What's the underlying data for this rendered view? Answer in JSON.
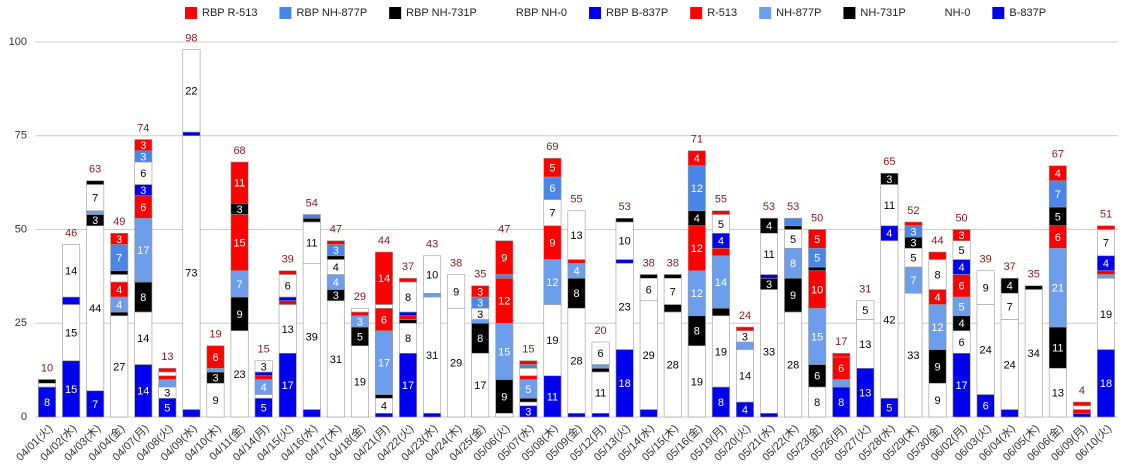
{
  "chart_data": {
    "type": "stacked_bar",
    "categories": [
      "04/01(火)",
      "04/02(水)",
      "04/03(木)",
      "04/04(金)",
      "04/07(月)",
      "04/08(火)",
      "04/09(水)",
      "04/10(木)",
      "04/11(金)",
      "04/14(月)",
      "04/15(火)",
      "04/16(水)",
      "04/17(木)",
      "04/18(金)",
      "04/21(月)",
      "04/22(火)",
      "04/23(水)",
      "04/24(木)",
      "04/25(金)",
      "05/06(火)",
      "05/07(水)",
      "05/08(木)",
      "05/09(金)",
      "05/12(月)",
      "05/13(火)",
      "05/14(水)",
      "05/15(木)",
      "05/16(金)",
      "05/19(月)",
      "05/20(火)",
      "05/21(水)",
      "05/22(木)",
      "05/23(金)",
      "05/26(月)",
      "05/27(火)",
      "05/28(水)",
      "05/29(木)",
      "05/30(金)",
      "06/02(月)",
      "06/03(火)",
      "06/04(水)",
      "06/05(木)",
      "06/06(金)",
      "06/09(月)",
      "06/10(火)"
    ],
    "series": [
      {
        "name": "RBP R-513",
        "color": "#ff0000",
        "values": [
          0,
          0,
          0,
          3,
          3,
          1,
          0,
          0,
          11,
          0,
          1,
          0,
          1,
          0,
          14,
          1,
          0,
          0,
          3,
          9,
          1,
          5,
          0,
          0,
          0,
          0,
          0,
          4,
          1,
          1,
          0,
          0,
          5,
          1,
          0,
          0,
          1,
          2,
          3,
          0,
          0,
          0,
          4,
          1,
          1
        ]
      },
      {
        "name": "RBP NH-877P",
        "color": "#4a86e8",
        "values": [
          0,
          0,
          0,
          7,
          3,
          0,
          0,
          0,
          0,
          0,
          0,
          1,
          3,
          0,
          0,
          0,
          0,
          0,
          3,
          1,
          1,
          6,
          0,
          0,
          0,
          0,
          0,
          12,
          0,
          0,
          0,
          2,
          5,
          0,
          0,
          0,
          3,
          0,
          0,
          0,
          0,
          0,
          7,
          0,
          0
        ]
      },
      {
        "name": "RBP NH-731P",
        "color": "#000000",
        "values": [
          0,
          0,
          1,
          1,
          0,
          0,
          0,
          0,
          3,
          0,
          0,
          1,
          1,
          0,
          0,
          0,
          0,
          0,
          0,
          0,
          0,
          0,
          0,
          0,
          1,
          1,
          1,
          4,
          0,
          0,
          4,
          1,
          1,
          0,
          0,
          3,
          3,
          0,
          0,
          0,
          4,
          1,
          5,
          0,
          0
        ]
      },
      {
        "name": "RBP NH-0",
        "color": "#ffffff",
        "values": [
          0,
          14,
          7,
          2,
          6,
          1,
          22,
          0,
          0,
          3,
          6,
          11,
          4,
          1,
          1,
          8,
          10,
          9,
          3,
          0,
          2,
          7,
          13,
          6,
          10,
          6,
          7,
          0,
          5,
          3,
          11,
          5,
          0,
          0,
          5,
          11,
          5,
          8,
          5,
          9,
          7,
          0,
          0,
          1,
          7
        ]
      },
      {
        "name": "RBP B-837P",
        "color": "#0000ee",
        "values": [
          0,
          2,
          0,
          0,
          3,
          0,
          1,
          0,
          0,
          1,
          1,
          0,
          0,
          0,
          0,
          1,
          0,
          0,
          0,
          0,
          0,
          0,
          0,
          0,
          1,
          0,
          0,
          0,
          4,
          0,
          1,
          0,
          0,
          0,
          0,
          4,
          0,
          0,
          4,
          0,
          0,
          0,
          0,
          0,
          4
        ]
      },
      {
        "name": "R-513",
        "color": "#ff0000",
        "values": [
          0,
          0,
          0,
          4,
          6,
          1,
          0,
          6,
          15,
          1,
          1,
          0,
          0,
          1,
          6,
          1,
          0,
          0,
          0,
          12,
          1,
          9,
          1,
          0,
          0,
          0,
          0,
          12,
          2,
          0,
          0,
          0,
          10,
          6,
          0,
          0,
          0,
          4,
          6,
          0,
          0,
          0,
          6,
          1,
          1
        ]
      },
      {
        "name": "NH-877P",
        "color": "#6d9eeb",
        "values": [
          0,
          0,
          1,
          4,
          17,
          2,
          0,
          1,
          7,
          4,
          0,
          0,
          4,
          3,
          17,
          0,
          1,
          0,
          1,
          15,
          5,
          12,
          4,
          1,
          0,
          0,
          0,
          12,
          14,
          2,
          0,
          8,
          15,
          2,
          0,
          0,
          7,
          12,
          5,
          0,
          0,
          0,
          21,
          0,
          1
        ]
      },
      {
        "name": "NH-731P",
        "color": "#000000",
        "values": [
          1,
          0,
          3,
          1,
          8,
          0,
          0,
          3,
          9,
          0,
          0,
          0,
          3,
          5,
          1,
          1,
          0,
          0,
          8,
          9,
          1,
          0,
          8,
          1,
          0,
          0,
          2,
          8,
          2,
          0,
          3,
          9,
          6,
          0,
          0,
          0,
          0,
          9,
          4,
          0,
          0,
          0,
          11,
          0,
          0
        ]
      },
      {
        "name": "NH-0",
        "color": "#ffffff",
        "values": [
          1,
          15,
          44,
          27,
          14,
          3,
          73,
          9,
          23,
          1,
          13,
          39,
          31,
          19,
          4,
          8,
          31,
          29,
          17,
          1,
          1,
          19,
          28,
          11,
          23,
          29,
          28,
          19,
          19,
          14,
          33,
          28,
          8,
          0,
          13,
          42,
          33,
          9,
          6,
          24,
          24,
          34,
          13,
          0,
          19
        ]
      },
      {
        "name": "B-837P",
        "color": "#0000ee",
        "values": [
          8,
          15,
          7,
          0,
          14,
          5,
          2,
          0,
          0,
          5,
          17,
          2,
          0,
          0,
          1,
          17,
          1,
          0,
          0,
          0,
          3,
          11,
          1,
          1,
          18,
          2,
          0,
          0,
          8,
          4,
          1,
          0,
          0,
          8,
          13,
          5,
          0,
          0,
          17,
          6,
          2,
          0,
          0,
          1,
          18
        ]
      }
    ],
    "totals": [
      10,
      46,
      63,
      49,
      74,
      13,
      98,
      19,
      68,
      15,
      39,
      54,
      47,
      29,
      44,
      37,
      43,
      38,
      35,
      47,
      15,
      69,
      55,
      20,
      53,
      38,
      38,
      71,
      55,
      24,
      53,
      53,
      50,
      17,
      31,
      65,
      52,
      44,
      50,
      39,
      37,
      35,
      67,
      4,
      51
    ],
    "ylim": [
      0,
      100
    ],
    "yticks": [
      0,
      25,
      50,
      75,
      100
    ],
    "grid": true
  }
}
